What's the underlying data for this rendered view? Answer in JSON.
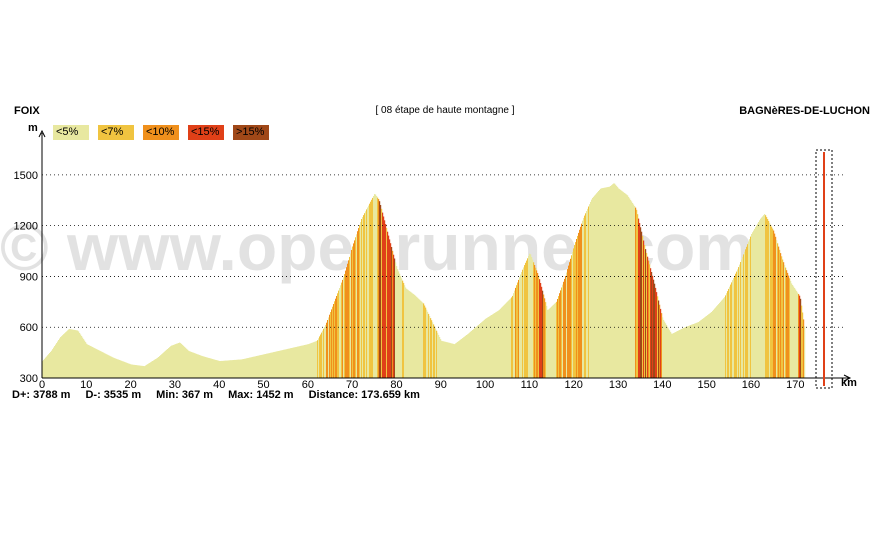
{
  "header": {
    "start": "FOIX",
    "subtitle": "[ 08 étape de haute montagne ]",
    "end": "BAGNèRES-DE-LUCHON"
  },
  "legend": [
    {
      "label": "<5%",
      "color": "#e8e8a0"
    },
    {
      "label": "<7%",
      "color": "#f0c440"
    },
    {
      "label": "<10%",
      "color": "#f0901c"
    },
    {
      "label": "<15%",
      "color": "#e04018"
    },
    {
      "label": ">15%",
      "color": "#a04818"
    }
  ],
  "watermark": "© www.openrunner.com",
  "stats": {
    "dplus": "D+: 3788 m",
    "dminus": "D-: 3535 m",
    "min": "Min: 367 m",
    "max": "Max: 1452 m",
    "distance": "Distance: 173.659 km"
  },
  "chart_data": {
    "type": "area",
    "title": "[ 08 étape de haute montagne ]",
    "xlabel": "km",
    "ylabel": "m",
    "xlim": [
      0,
      174
    ],
    "ylim": [
      300,
      1700
    ],
    "x_ticks": [
      0,
      10,
      20,
      30,
      40,
      50,
      60,
      70,
      80,
      90,
      100,
      110,
      120,
      130,
      140,
      150,
      160,
      170
    ],
    "y_ticks": [
      300,
      600,
      900,
      1200,
      1500
    ],
    "gridlines": [
      600,
      900,
      1200,
      1500
    ],
    "x": [
      0,
      2,
      4,
      6,
      8,
      10,
      13,
      16,
      20,
      23,
      26,
      29,
      31,
      33,
      36,
      40,
      45,
      50,
      55,
      60,
      62,
      64,
      66,
      68,
      70,
      72,
      74,
      75,
      76,
      78,
      80,
      82,
      84,
      86,
      88,
      90,
      93,
      96,
      100,
      103,
      106,
      108,
      110,
      112,
      114,
      116,
      118,
      120,
      122,
      124,
      126,
      128,
      129,
      130,
      132,
      134,
      136,
      138,
      140,
      142,
      145,
      148,
      151,
      154,
      157,
      160,
      162,
      163,
      165,
      167,
      169,
      171,
      172
    ],
    "y": [
      400,
      460,
      540,
      590,
      580,
      500,
      460,
      420,
      380,
      370,
      420,
      490,
      510,
      460,
      430,
      400,
      410,
      440,
      470,
      500,
      520,
      620,
      760,
      900,
      1080,
      1240,
      1340,
      1390,
      1350,
      1150,
      950,
      830,
      790,
      740,
      630,
      520,
      500,
      560,
      650,
      700,
      780,
      920,
      1040,
      900,
      700,
      750,
      900,
      1080,
      1240,
      1360,
      1420,
      1430,
      1452,
      1420,
      1380,
      1300,
      1070,
      870,
      650,
      560,
      600,
      630,
      690,
      780,
      950,
      1150,
      1240,
      1270,
      1170,
      1000,
      860,
      780,
      600
    ],
    "gradient_class_by_segment": "computed from slope; colors per legend"
  }
}
